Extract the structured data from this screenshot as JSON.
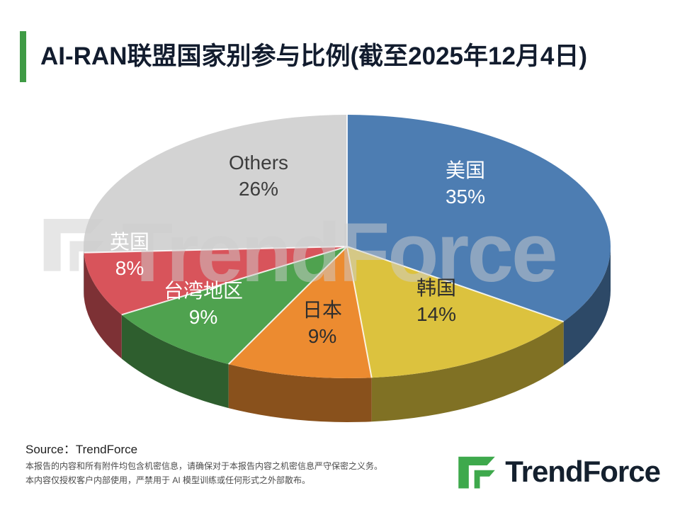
{
  "title": "AI-RAN联盟国家别参与比例(截至2025年12月4日)",
  "accent_color": "#3f9b45",
  "logo_green": "#3EA94C",
  "watermark": "TrendForce",
  "chart_data": {
    "type": "pie",
    "style": "3d",
    "title": "AI-RAN联盟国家别参与比例(截至2025年12月4日)",
    "start_angle_deg": 0,
    "direction": "clockwise",
    "slices": [
      {
        "label": "美国",
        "value": 35,
        "display": "35%",
        "color": "#4D7DB2"
      },
      {
        "label": "韩国",
        "value": 14,
        "display": "14%",
        "color": "#DCC23E"
      },
      {
        "label": "日本",
        "value": 9,
        "display": "9%",
        "color": "#EC8B30"
      },
      {
        "label": "台湾地区",
        "value": 9,
        "display": "9%",
        "color": "#4FA24F"
      },
      {
        "label": "英国",
        "value": 8,
        "display": "8%",
        "color": "#D8545B"
      },
      {
        "label": "Others",
        "value": 26,
        "display": "26%",
        "color": "#D3D3D3"
      }
    ]
  },
  "source": "Source：TrendForce",
  "disclaimer": [
    "本报告的内容和所有附件均包含机密信息，请确保对于本报告内容之机密信息严守保密之义务。",
    "本内容仅授权客户内部使用，严禁用于 AI 模型训练或任何形式之外部散布。"
  ],
  "logo_text": "TrendForce"
}
